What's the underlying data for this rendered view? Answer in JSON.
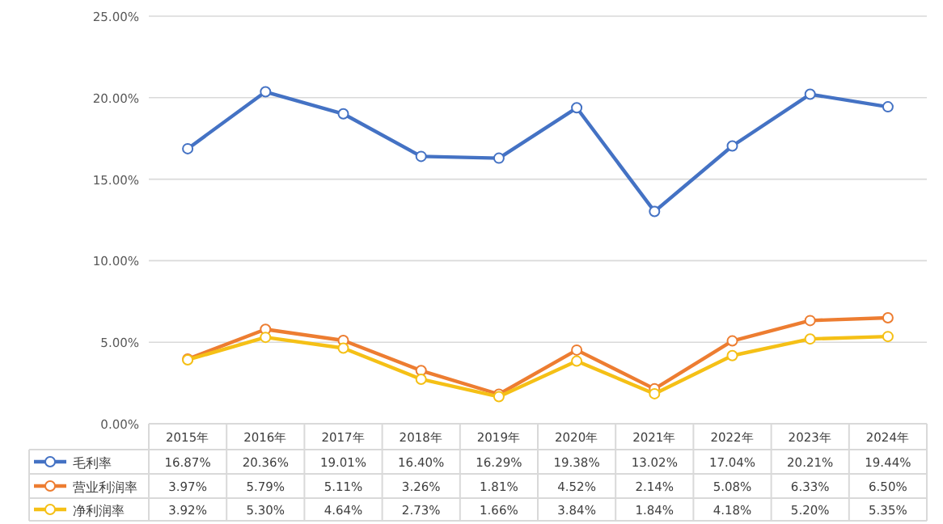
{
  "chart_data": {
    "type": "line",
    "categories": [
      "2015年",
      "2016年",
      "2017年",
      "2018年",
      "2019年",
      "2020年",
      "2021年",
      "2022年",
      "2023年",
      "2024年"
    ],
    "series": [
      {
        "name": "毛利率",
        "color": "#4472c4",
        "values": [
          16.87,
          20.36,
          19.01,
          16.4,
          16.29,
          19.38,
          13.02,
          17.04,
          20.21,
          19.44
        ],
        "value_labels": [
          "16.87%",
          "20.36%",
          "19.01%",
          "16.40%",
          "16.29%",
          "19.38%",
          "13.02%",
          "17.04%",
          "20.21%",
          "19.44%"
        ]
      },
      {
        "name": "营业利润率",
        "color": "#ed7d31",
        "values": [
          3.97,
          5.79,
          5.11,
          3.26,
          1.81,
          4.52,
          2.14,
          5.08,
          6.33,
          6.5
        ],
        "value_labels": [
          "3.97%",
          "5.79%",
          "5.11%",
          "3.26%",
          "1.81%",
          "4.52%",
          "2.14%",
          "5.08%",
          "6.33%",
          "6.50%"
        ]
      },
      {
        "name": "净利润率",
        "color": "#f5c016",
        "values": [
          3.92,
          5.3,
          4.64,
          2.73,
          1.66,
          3.84,
          1.84,
          4.18,
          5.2,
          5.35
        ],
        "value_labels": [
          "3.92%",
          "5.30%",
          "4.64%",
          "2.73%",
          "1.66%",
          "3.84%",
          "1.84%",
          "4.18%",
          "5.20%",
          "5.35%"
        ]
      }
    ],
    "ylim": [
      0,
      25
    ],
    "yticks": [
      {
        "value": 0,
        "label": "0.00%"
      },
      {
        "value": 5,
        "label": "5.00%"
      },
      {
        "value": 10,
        "label": "10.00%"
      },
      {
        "value": 15,
        "label": "15.00%"
      },
      {
        "value": 20,
        "label": "20.00%"
      },
      {
        "value": 25,
        "label": "25.00%"
      }
    ],
    "grid": "y",
    "marker": "circle",
    "line_style": "solid",
    "legend": "bottom"
  }
}
